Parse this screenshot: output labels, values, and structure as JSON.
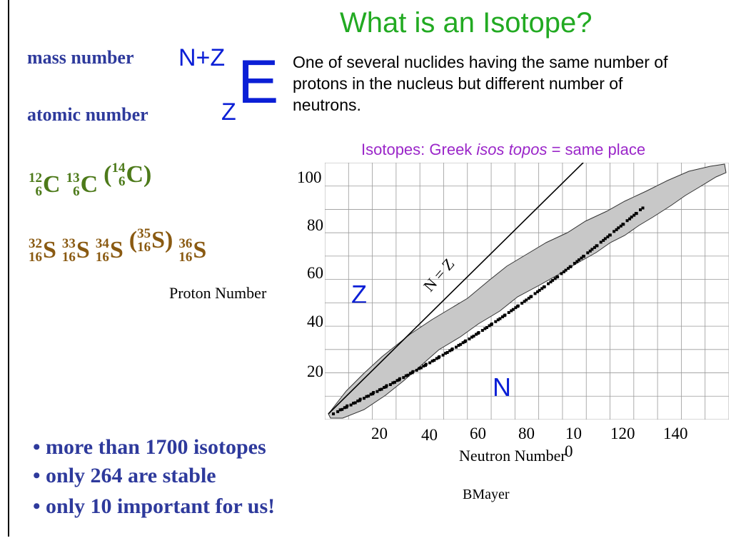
{
  "title": "What is an Isotope?",
  "notation": {
    "mass_label": "mass number",
    "atomic_label": "atomic number",
    "superscript": "N+Z",
    "subscript": "Z",
    "symbol": "E"
  },
  "definition": "One of several nuclides having the same number of protons in the nucleus but different number of neutrons.",
  "etymology": {
    "prefix": "Isotopes: Greek ",
    "greek": "isos topos",
    "suffix": " = same place"
  },
  "carbon": {
    "color": "#4d7a1a",
    "items": [
      {
        "mass": "12",
        "z": "6",
        "symbol": "C",
        "paren": false
      },
      {
        "mass": "13",
        "z": "6",
        "symbol": "C",
        "paren": false
      },
      {
        "mass": "14",
        "z": "6",
        "symbol": "C",
        "paren": true
      }
    ]
  },
  "sulfur": {
    "color": "#8a5a12",
    "items": [
      {
        "mass": "32",
        "z": "16",
        "symbol": "S",
        "paren": false
      },
      {
        "mass": "33",
        "z": "16",
        "symbol": "S",
        "paren": false
      },
      {
        "mass": "34",
        "z": "16",
        "symbol": "S",
        "paren": false
      },
      {
        "mass": "35",
        "z": "16",
        "symbol": "S",
        "paren": true
      },
      {
        "mass": "36",
        "z": "16",
        "symbol": "S",
        "paren": false
      }
    ]
  },
  "chart": {
    "y_axis_label": "Proton Number",
    "x_axis_label": "Neutron Number",
    "y_ticks": [
      "100",
      "80",
      "60",
      "40",
      "20"
    ],
    "x_ticks": [
      "20",
      "40",
      "60",
      "80",
      "10",
      "120",
      "140"
    ],
    "x_tick_extra": "0",
    "line_label": "N = Z",
    "z_letter": "Z",
    "n_letter": "N",
    "colors": {
      "band": "#c8c8c8",
      "grid": "#9a9a9a",
      "stable": "#000000",
      "letters": "#0b1fd6"
    }
  },
  "bullets": [
    "• more than 1700 isotopes",
    "• only 264 are stable",
    "• only 10 important for us!"
  ],
  "credit": "BMayer"
}
